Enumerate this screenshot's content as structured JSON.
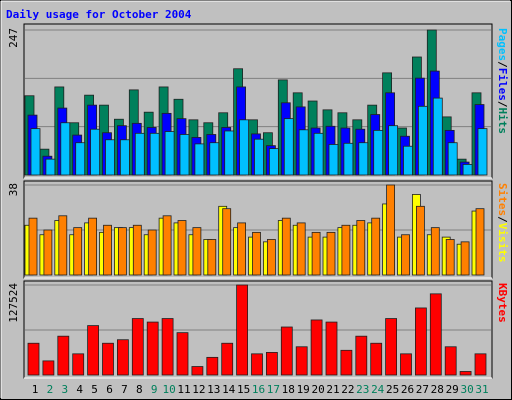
{
  "chart_data": [
    {
      "type": "bar",
      "title": "Daily usage for October 2004",
      "legend_separator": "/",
      "ylim": [
        0,
        247
      ],
      "yticks": [
        247
      ],
      "series": [
        {
          "name": "Hits",
          "color": "#00805c",
          "values": [
            135,
            44,
            150,
            89,
            136,
            119,
            95,
            145,
            107,
            150,
            129,
            94,
            89,
            106,
            181,
            94,
            72,
            162,
            140,
            126,
            111,
            106,
            94,
            119,
            174,
            80,
            201,
            247,
            99,
            27,
            140
          ]
        },
        {
          "name": "Files",
          "color": "#0000ff",
          "values": [
            102,
            32,
            114,
            68,
            119,
            72,
            84,
            88,
            81,
            105,
            96,
            64,
            69,
            81,
            150,
            70,
            50,
            123,
            116,
            80,
            83,
            80,
            78,
            103,
            140,
            66,
            165,
            177,
            76,
            22,
            120
          ]
        },
        {
          "name": "Pages",
          "color": "#00c0ff",
          "values": [
            79,
            27,
            89,
            55,
            78,
            60,
            60,
            71,
            71,
            74,
            69,
            53,
            55,
            75,
            94,
            61,
            45,
            96,
            77,
            71,
            52,
            54,
            55,
            76,
            84,
            49,
            117,
            131,
            55,
            18,
            79
          ]
        }
      ]
    },
    {
      "type": "bar",
      "ylim": [
        0,
        38
      ],
      "yticks": [
        38
      ],
      "series": [
        {
          "name": "Visits",
          "color": "#ffff00",
          "values": [
            21,
            17,
            23,
            17,
            22,
            18,
            20,
            20,
            17,
            24,
            22,
            17,
            15,
            29,
            20,
            16,
            14,
            23,
            21,
            16,
            16,
            20,
            21,
            22,
            30,
            16,
            34,
            17,
            16,
            13,
            27
          ]
        },
        {
          "name": "Sites",
          "color": "#ff8000",
          "values": [
            24,
            19,
            25,
            20,
            24,
            21,
            20,
            21,
            19,
            25,
            23,
            20,
            15,
            28,
            22,
            18,
            15,
            24,
            22,
            18,
            18,
            21,
            23,
            24,
            38,
            17,
            29,
            20,
            15,
            14,
            28
          ]
        }
      ]
    },
    {
      "type": "bar",
      "ylim": [
        0,
        127524
      ],
      "yticks": [
        127524
      ],
      "categories": [
        "1",
        "2",
        "3",
        "4",
        "5",
        "6",
        "7",
        "8",
        "9",
        "10",
        "11",
        "12",
        "13",
        "14",
        "15",
        "16",
        "17",
        "18",
        "19",
        "20",
        "21",
        "22",
        "23",
        "24",
        "25",
        "26",
        "27",
        "28",
        "29",
        "30",
        "31"
      ],
      "category_colors": [
        "#000000",
        "#00805c",
        "#00805c",
        "#000000",
        "#000000",
        "#000000",
        "#000000",
        "#000000",
        "#00805c",
        "#00805c",
        "#000000",
        "#000000",
        "#000000",
        "#000000",
        "#000000",
        "#00805c",
        "#00805c",
        "#000000",
        "#000000",
        "#000000",
        "#000000",
        "#000000",
        "#00805c",
        "#00805c",
        "#000000",
        "#000000",
        "#000000",
        "#000000",
        "#000000",
        "#00805c",
        "#00805c"
      ],
      "series": [
        {
          "name": "KBytes",
          "color": "#ff0000",
          "values": [
            45000,
            20000,
            55000,
            30000,
            70000,
            45000,
            50000,
            80000,
            75000,
            80000,
            60000,
            12000,
            25000,
            45000,
            127524,
            30000,
            32000,
            68000,
            40000,
            78000,
            75000,
            35000,
            55000,
            45000,
            80000,
            30000,
            95000,
            115000,
            40000,
            5000,
            30000
          ]
        }
      ]
    }
  ]
}
